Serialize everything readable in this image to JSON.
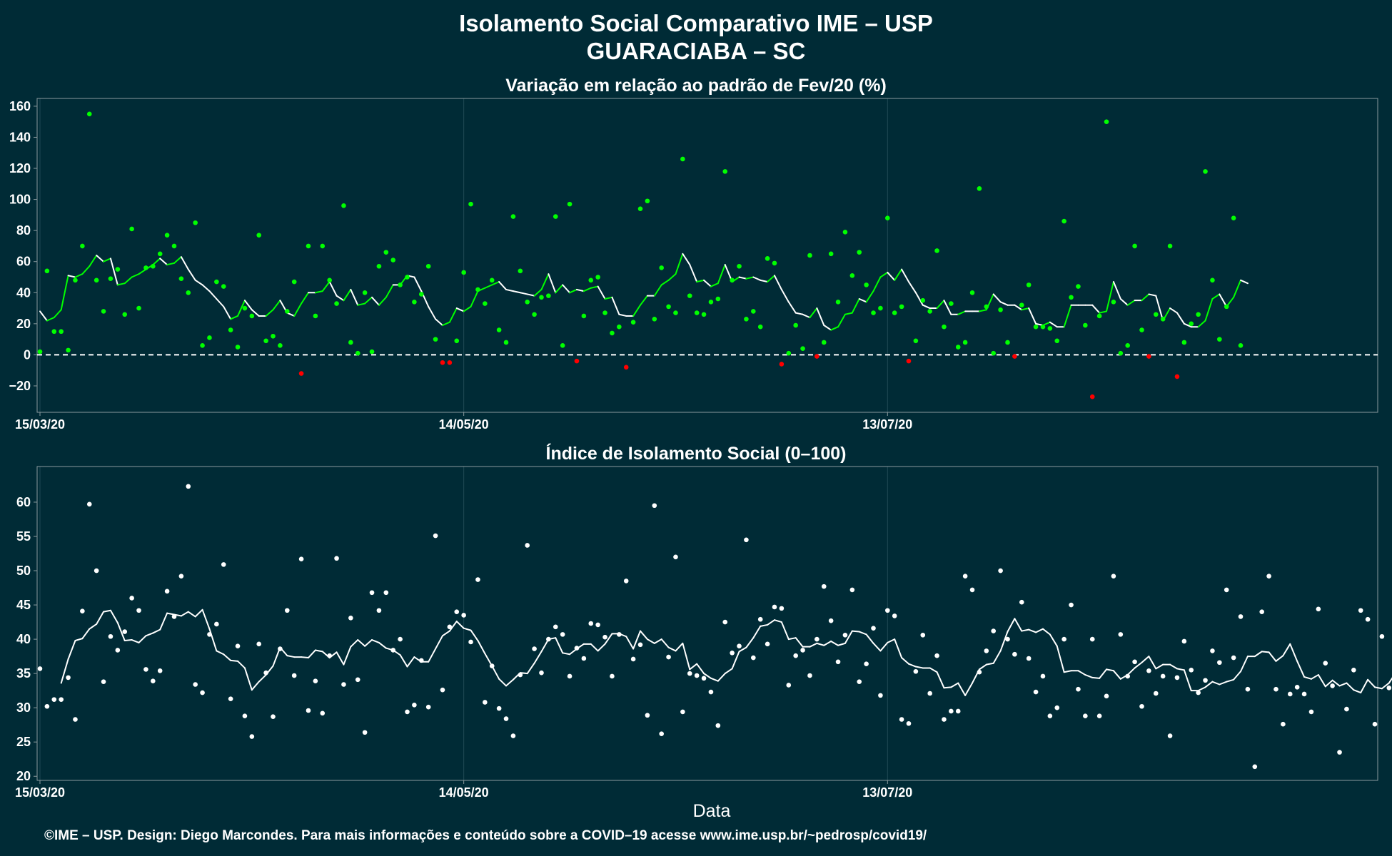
{
  "title_line1": "Isolamento Social Comparativo IME – USP",
  "title_line2": "GUARACIABA – SC",
  "footer": "©IME – USP. Design: Diego Marcondes. Para mais informações e conteúdo sobre a COVID–19 acesse www.ime.usp.br/~pedrosp/covid19/",
  "colors": {
    "background": "#002b36",
    "panel_border": "#8a9a9e",
    "grid": "#214a55",
    "positive_point": "#00ff00",
    "negative_point": "#ff0000",
    "line_positive": "#00ff00",
    "line_negative": "#cc0000",
    "line_neutral": "#ffffff",
    "index_point": "#ffffff",
    "index_line": "#ffffff"
  },
  "chart_data": [
    {
      "type": "scatter",
      "title": "Variação em relação ao padrão de Fev/20 (%)",
      "xlabel": "",
      "ylabel": "",
      "x_start": "15/03/20",
      "x_end": "20/09/20",
      "ylim": [
        -37,
        165
      ],
      "yticks": [
        -20,
        0,
        20,
        40,
        60,
        80,
        100,
        120,
        140,
        160
      ],
      "xticks": [
        "15/03/20",
        "14/05/20",
        "13/07/20"
      ],
      "reference_line": {
        "y": 0,
        "style": "dashed"
      },
      "grid": true,
      "points": [
        2,
        54,
        15,
        15,
        3,
        48,
        70,
        155,
        48,
        28,
        49,
        55,
        26,
        81,
        30,
        56,
        57,
        65,
        77,
        70,
        49,
        40,
        85,
        6,
        11,
        47,
        44,
        16,
        5,
        30,
        25,
        77,
        9,
        12,
        6,
        28,
        47,
        -12,
        70,
        25,
        70,
        48,
        33,
        96,
        8,
        1,
        40,
        2,
        57,
        66,
        61,
        45,
        50,
        34,
        39,
        57,
        10,
        -5,
        -5,
        9,
        53,
        97,
        42,
        33,
        48,
        16,
        8,
        89,
        54,
        34,
        26,
        37,
        38,
        89,
        6,
        97,
        -4,
        25,
        48,
        50,
        27,
        14,
        18,
        -8,
        21,
        94,
        99,
        23,
        56,
        31,
        27,
        126,
        38,
        27,
        26,
        34,
        36,
        118,
        48,
        57,
        23,
        28,
        18,
        62,
        59,
        -6,
        1,
        19,
        4,
        64,
        -1,
        8,
        65,
        34,
        79,
        51,
        66,
        45,
        27,
        30,
        88,
        27,
        31,
        -4,
        9,
        35,
        28,
        67,
        18,
        33,
        5,
        8,
        40,
        107,
        31,
        1,
        29,
        8,
        -1,
        32,
        45,
        18,
        18,
        17,
        9,
        86,
        37,
        44,
        19,
        -27,
        25,
        150,
        34,
        1,
        6,
        70,
        16,
        -1,
        26,
        23,
        70,
        -14,
        8,
        20,
        26,
        118,
        48,
        10,
        31,
        88,
        6
      ],
      "rolling_mean": [
        28,
        22,
        24,
        29,
        51,
        50,
        52,
        57,
        64,
        60,
        62,
        45,
        46,
        50,
        52,
        55,
        58,
        62,
        58,
        59,
        63,
        55,
        48,
        45,
        41,
        36,
        31,
        23,
        25,
        35,
        29,
        25,
        25,
        29,
        35,
        27,
        25,
        33,
        40,
        40,
        41,
        47,
        38,
        35,
        42,
        32,
        33,
        37,
        32,
        37,
        45,
        45,
        51,
        50,
        41,
        31,
        23,
        19,
        21,
        30,
        28,
        31,
        41,
        43,
        45,
        47,
        42,
        41,
        40,
        39,
        38,
        42,
        52,
        40,
        45,
        40,
        42,
        41,
        43,
        44,
        36,
        37,
        26,
        25,
        25,
        32,
        38,
        38,
        45,
        48,
        52,
        65,
        58,
        47,
        48,
        44,
        46,
        58,
        47,
        50,
        49,
        50,
        48,
        47,
        51,
        42,
        34,
        27,
        26,
        24,
        30,
        19,
        16,
        18,
        26,
        27,
        36,
        34,
        41,
        50,
        53,
        48,
        55,
        47,
        40,
        32,
        30,
        30,
        35,
        26,
        26,
        28,
        28,
        28,
        29,
        39,
        34,
        32,
        32,
        29,
        30,
        20,
        19,
        21,
        18,
        18,
        32,
        32,
        32,
        32,
        27,
        28,
        47,
        36,
        32,
        35,
        35,
        39,
        38,
        22,
        30,
        27,
        20,
        18,
        18,
        22,
        36,
        39,
        31,
        37,
        48,
        46
      ]
    },
    {
      "type": "scatter",
      "title": "Índice de Isolamento Social (0–100)",
      "xlabel": "Data",
      "ylabel": "",
      "x_start": "15/03/20",
      "x_end": "20/09/20",
      "ylim": [
        19.4,
        65.2
      ],
      "yticks": [
        20,
        25,
        30,
        35,
        40,
        45,
        50,
        55,
        60
      ],
      "xticks": [
        "15/03/20",
        "14/05/20",
        "13/07/20"
      ],
      "grid": true,
      "points": [
        35.7,
        30.2,
        31.2,
        31.2,
        34.4,
        28.3,
        44.1,
        59.7,
        50,
        33.8,
        40.4,
        38.4,
        41.1,
        46,
        44.2,
        35.6,
        33.9,
        35.4,
        47,
        43.3,
        49.2,
        62.3,
        33.4,
        32.2,
        40.7,
        42.2,
        50.9,
        31.3,
        39,
        28.8,
        25.8,
        39.3,
        35.1,
        28.7,
        38.6,
        44.2,
        34.7,
        51.7,
        29.6,
        33.9,
        29.2,
        37.6,
        51.8,
        33.4,
        43.1,
        34.1,
        26.4,
        46.8,
        44.2,
        46.8,
        38.4,
        40,
        29.4,
        30.4,
        36.9,
        30.1,
        55.1,
        32.6,
        41.8,
        44,
        43.5,
        39.6,
        48.7,
        30.8,
        36.1,
        29.9,
        28.4,
        25.9,
        34.8,
        53.7,
        38.6,
        35.1,
        40,
        41.8,
        40.7,
        34.6,
        38.7,
        37.2,
        42.3,
        42.1,
        40.3,
        34.6,
        40.7,
        48.5,
        37.1,
        39.2,
        28.9,
        59.5,
        26.2,
        37.4,
        52,
        29.4,
        35,
        34.7,
        34.3,
        32.3,
        27.4,
        42.5,
        38,
        39,
        54.5,
        37.3,
        42.9,
        39.3,
        44.7,
        44.5,
        33.3,
        37.6,
        38.4,
        34.7,
        40,
        47.7,
        42.7,
        36.7,
        40.6,
        47.2,
        33.8,
        36.4,
        41.6,
        31.8,
        44.2,
        43.4,
        28.3,
        27.7,
        35.3,
        40.6,
        32.1,
        37.6,
        28.3,
        29.5,
        29.5,
        49.2,
        47.2,
        35.2,
        38.3,
        41.2,
        50,
        40,
        37.8,
        45.4,
        37.2,
        32.3,
        34.6,
        28.8,
        30,
        40,
        45,
        32.7,
        28.8,
        40,
        28.8,
        31.7,
        49.2,
        40.7,
        34.6,
        36.7,
        30.2,
        35.4,
        32.1,
        34.6,
        25.9,
        34.4,
        39.7,
        35.5,
        32.2,
        34,
        38.3,
        36.6,
        47.2,
        37.3,
        43.3,
        32.7,
        21.4,
        44,
        49.2,
        32.7,
        27.6,
        32,
        33,
        32,
        29.4,
        44.4,
        36.5,
        33.2,
        23.5,
        29.8,
        35.5,
        44.2,
        42.9,
        27.6,
        40.4,
        32.9,
        46,
        36.8,
        28.8
      ],
      "rolling_mean": [
        null,
        null,
        null,
        33.6,
        37.1,
        39.8,
        40.1,
        41.5,
        42.2,
        44,
        44.2,
        42.4,
        39.8,
        39.9,
        39.5,
        40.5,
        40.9,
        41.4,
        43.8,
        43.6,
        43.4,
        44,
        43.3,
        44.3,
        41.5,
        38.3,
        37.8,
        36.9,
        36.8,
        35.8,
        32.6,
        33.8,
        34.8,
        36.1,
        38.8,
        37.6,
        37.4,
        37.4,
        37.3,
        38.4,
        38.2,
        37.3,
        38.1,
        36.3,
        38.9,
        39.9,
        39,
        39.9,
        39.5,
        38.7,
        38.4,
        37.7,
        36,
        37.4,
        36.7,
        36.7,
        38.6,
        40.5,
        41.2,
        42.6,
        41.6,
        41.3,
        39.8,
        37.9,
        36.1,
        34.2,
        33.2,
        34.1,
        35.1,
        35,
        36.5,
        38.2,
        40,
        40.2,
        38,
        37.8,
        38.6,
        39.3,
        39.3,
        38.3,
        39.3,
        40.8,
        40.8,
        40.4,
        38.6,
        41.2,
        40,
        39.4,
        40,
        38.8,
        38.3,
        39.4,
        35.6,
        36.4,
        35,
        34.3,
        33.9,
        35,
        35.7,
        38.2,
        38.8,
        40.2,
        41.9,
        42.1,
        42.8,
        42.5,
        40,
        40.2,
        38.9,
        38.9,
        39.4,
        39.1,
        39.7,
        39.1,
        39.4,
        41.2,
        41.1,
        40.7,
        39.4,
        38.3,
        39.5,
        40,
        37.3,
        36.4,
        36,
        35.8,
        35.8,
        35.2,
        32.9,
        33,
        33.6,
        31.8,
        33.6,
        35.6,
        36.3,
        36.5,
        38.3,
        41.1,
        43,
        41.2,
        41.4,
        41,
        41.5,
        40.7,
        39,
        35.2,
        35.4,
        35.4,
        34.8,
        34.4,
        34.3,
        35.6,
        35.4,
        34.2,
        34.8,
        35.8,
        36.6,
        37.5,
        35.7,
        36.3,
        36.3,
        35.7,
        35.5,
        32.5,
        32.5,
        33,
        33.8,
        33.4,
        33.8,
        34.1,
        35.3,
        37.5,
        37.5,
        38.2,
        38.1,
        36.8,
        37.6,
        39.3,
        36.8,
        34.5,
        34.2,
        34.8,
        33.1,
        34,
        33.2,
        33.6,
        32.6,
        32.2,
        34.1,
        33,
        32.8,
        33.6,
        35.2,
        34.7,
        33.7,
        34.6,
        35.5,
        38,
        38.3,
        36.2,
        30.4,
        34,
        30.4
      ]
    }
  ]
}
